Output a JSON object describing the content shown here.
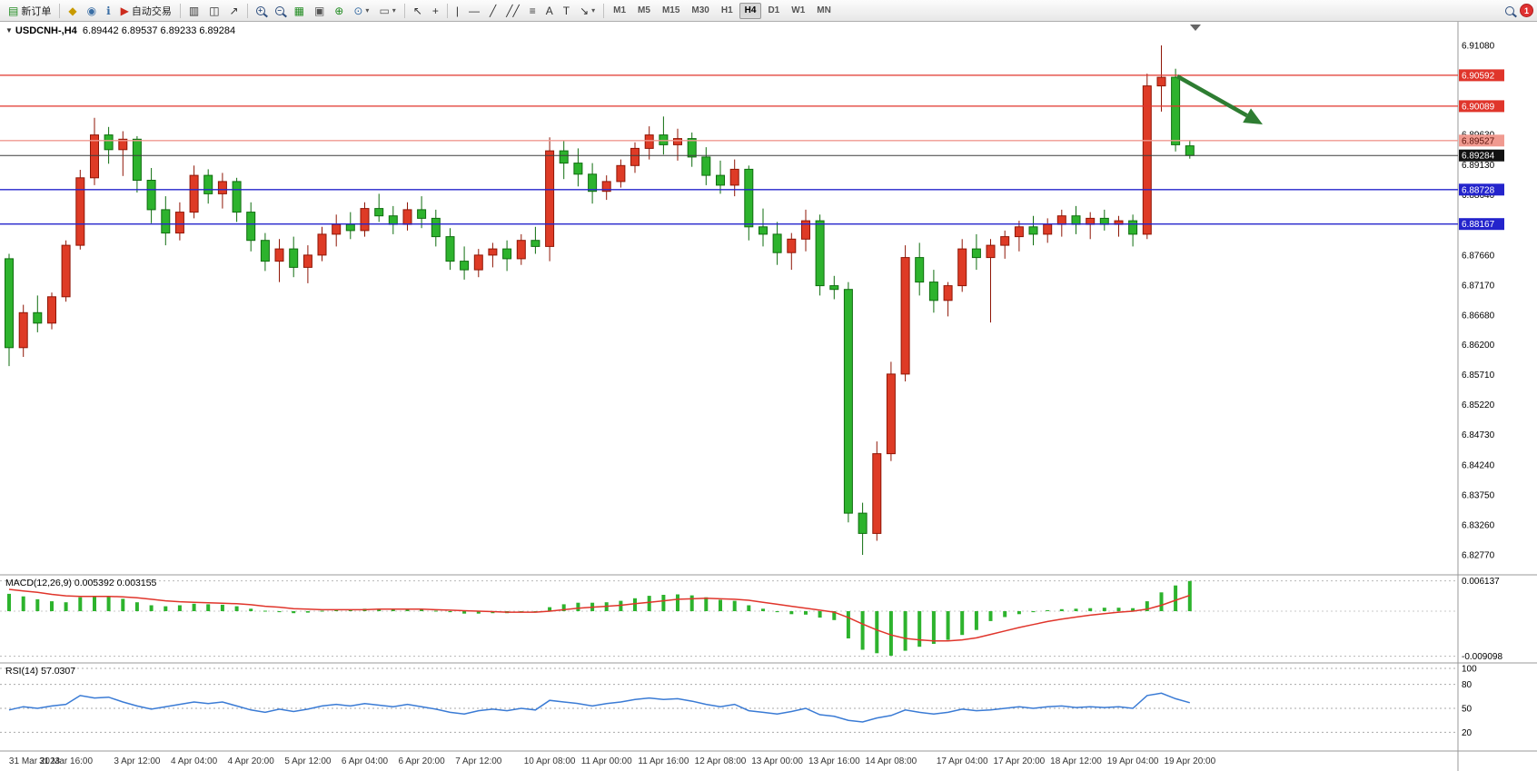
{
  "toolbar": {
    "new_order": "新订单",
    "auto_trading": "自动交易",
    "timeframes": [
      "M1",
      "M5",
      "M15",
      "M30",
      "H1",
      "H4",
      "D1",
      "W1",
      "MN"
    ],
    "active_timeframe": "H4",
    "notification_count": "1"
  },
  "icons": {
    "menu_collapse": "▾",
    "new_order": "▤",
    "market_watch": "◆",
    "profiles": "◉",
    "info": "ℹ",
    "auto_trading": "▶",
    "bar_chart": "▥",
    "candle_chart": "◫",
    "line_chart": "↗",
    "tile_windows": "▦",
    "arrange_windows": "▣",
    "add_indicator": "⊕",
    "periods": "⊙",
    "template": "▭",
    "dropdown": "▾",
    "cursor": "↖",
    "crosshair": "+",
    "vertical_line": "|",
    "horizontal_line": "—",
    "trend_line": "╱",
    "channel": "╱╱",
    "fibonacci": "≡",
    "text": "A",
    "text_label": "T",
    "arrow_tool": "↘",
    "chart_collapse": "▼",
    "shift_marker": "▼"
  },
  "chart": {
    "type": "candlestick",
    "symbol": "USDCNH-,H4",
    "timeframe": "H4",
    "open": "6.89442",
    "high": "6.89537",
    "low": "6.89233",
    "close": "6.89284",
    "colors": {
      "up": "#de3b26",
      "up_dark": "#8f1606",
      "down": "#2db32d",
      "down_dark": "#0f6d0f",
      "current_line": "#3c3c3c",
      "resistance": "#e0352b",
      "support": "#2424cc",
      "mid_line": "#f09a90",
      "arrow": "#2e7d32"
    },
    "price_axis_labels": [
      "6.91080",
      "6.89630",
      "6.89130",
      "6.88640",
      "6.87660",
      "6.87170",
      "6.86680",
      "6.86200",
      "6.85710",
      "6.85220",
      "6.84730",
      "6.84240",
      "6.83750",
      "6.83260",
      "6.82770"
    ],
    "levels": [
      {
        "price": "6.90592",
        "value": 6.90592,
        "kind": "resistance"
      },
      {
        "price": "6.90089",
        "value": 6.90089,
        "kind": "resistance"
      },
      {
        "price": "6.89527",
        "value": 6.89527,
        "kind": "mid_line"
      },
      {
        "price": "6.89284",
        "value": 6.89284,
        "kind": "current_line"
      },
      {
        "price": "6.88728",
        "value": 6.88728,
        "kind": "support"
      },
      {
        "price": "6.88167",
        "value": 6.88167,
        "kind": "support"
      }
    ],
    "annotation": {
      "type": "arrow",
      "direction": "down-right"
    },
    "candles": [
      [
        6.876,
        6.8768,
        6.8585,
        6.8615
      ],
      [
        6.8615,
        6.8685,
        6.86,
        6.8672
      ],
      [
        6.8672,
        6.87,
        6.864,
        6.8655
      ],
      [
        6.8655,
        6.8705,
        6.8645,
        6.8698
      ],
      [
        6.8698,
        6.879,
        6.869,
        6.8782
      ],
      [
        6.8782,
        6.8905,
        6.8775,
        6.8892
      ],
      [
        6.8892,
        6.899,
        6.888,
        6.8962
      ],
      [
        6.8962,
        6.8975,
        6.8915,
        6.8938
      ],
      [
        6.8938,
        6.8968,
        6.8895,
        6.8955
      ],
      [
        6.8955,
        6.896,
        6.8868,
        6.8888
      ],
      [
        6.8888,
        6.8908,
        6.8818,
        6.884
      ],
      [
        6.884,
        6.8862,
        6.8782,
        6.8802
      ],
      [
        6.8802,
        6.8852,
        6.879,
        6.8836
      ],
      [
        6.8836,
        6.8912,
        6.8826,
        6.8896
      ],
      [
        6.8896,
        6.8906,
        6.885,
        6.8866
      ],
      [
        6.8866,
        6.89,
        6.8842,
        6.8886
      ],
      [
        6.8886,
        6.8892,
        6.882,
        6.8836
      ],
      [
        6.8836,
        6.8852,
        6.8772,
        6.879
      ],
      [
        6.879,
        6.8802,
        6.874,
        6.8756
      ],
      [
        6.8756,
        6.8792,
        6.8722,
        6.8776
      ],
      [
        6.8776,
        6.8796,
        6.873,
        6.8746
      ],
      [
        6.8746,
        6.8782,
        6.872,
        6.8766
      ],
      [
        6.8766,
        6.8812,
        6.8756,
        6.88
      ],
      [
        6.88,
        6.8832,
        6.878,
        6.8816
      ],
      [
        6.8816,
        6.8836,
        6.8792,
        6.8806
      ],
      [
        6.8806,
        6.8852,
        6.8796,
        6.8842
      ],
      [
        6.8842,
        6.8866,
        6.882,
        6.883
      ],
      [
        6.883,
        6.8846,
        6.88,
        6.8816
      ],
      [
        6.8816,
        6.8852,
        6.8806,
        6.884
      ],
      [
        6.884,
        6.8862,
        6.881,
        6.8826
      ],
      [
        6.8826,
        6.884,
        6.878,
        6.8796
      ],
      [
        6.8796,
        6.881,
        6.8742,
        6.8756
      ],
      [
        6.8756,
        6.878,
        6.8726,
        6.8742
      ],
      [
        6.8742,
        6.8776,
        6.873,
        6.8766
      ],
      [
        6.8766,
        6.8786,
        6.8746,
        6.8776
      ],
      [
        6.8776,
        6.879,
        6.874,
        6.876
      ],
      [
        6.876,
        6.88,
        6.875,
        6.879
      ],
      [
        6.879,
        6.8812,
        6.8768,
        6.878
      ],
      [
        6.878,
        6.8958,
        6.8756,
        6.8936
      ],
      [
        6.8936,
        6.8952,
        6.889,
        6.8916
      ],
      [
        6.8916,
        6.894,
        6.8878,
        6.8898
      ],
      [
        6.8898,
        6.8916,
        6.885,
        6.887
      ],
      [
        6.887,
        6.8896,
        6.8856,
        6.8886
      ],
      [
        6.8886,
        6.8922,
        6.8876,
        6.8912
      ],
      [
        6.8912,
        6.895,
        6.89,
        6.894
      ],
      [
        6.894,
        6.8976,
        6.8922,
        6.8962
      ],
      [
        6.8962,
        6.8992,
        6.893,
        6.8946
      ],
      [
        6.8946,
        6.8972,
        6.892,
        6.8956
      ],
      [
        6.8956,
        6.8966,
        6.891,
        6.8926
      ],
      [
        6.8926,
        6.8942,
        6.888,
        6.8896
      ],
      [
        6.8896,
        6.892,
        6.8866,
        6.888
      ],
      [
        6.888,
        6.8922,
        6.8862,
        6.8906
      ],
      [
        6.8906,
        6.8912,
        6.879,
        6.8812
      ],
      [
        6.8812,
        6.8842,
        6.878,
        6.88
      ],
      [
        6.88,
        6.882,
        6.875,
        6.877
      ],
      [
        6.877,
        6.8802,
        6.8742,
        6.8792
      ],
      [
        6.8792,
        6.884,
        6.8772,
        6.8822
      ],
      [
        6.8822,
        6.8832,
        6.87,
        6.8716
      ],
      [
        6.8716,
        6.8732,
        6.8694,
        6.871
      ],
      [
        6.871,
        6.8722,
        6.833,
        6.8345
      ],
      [
        6.8345,
        6.8362,
        6.8277,
        6.8312
      ],
      [
        6.8312,
        6.8462,
        6.83,
        6.8442
      ],
      [
        6.8442,
        6.8592,
        6.843,
        6.8572
      ],
      [
        6.8572,
        6.8782,
        6.856,
        6.8762
      ],
      [
        6.8762,
        6.8786,
        6.87,
        6.8722
      ],
      [
        6.8722,
        6.8742,
        6.8672,
        6.8692
      ],
      [
        6.8692,
        6.8722,
        6.8666,
        6.8716
      ],
      [
        6.8716,
        6.8792,
        6.8706,
        6.8776
      ],
      [
        6.8776,
        6.88,
        6.8742,
        6.8762
      ],
      [
        6.8762,
        6.8792,
        6.8656,
        6.8782
      ],
      [
        6.8782,
        6.8806,
        6.876,
        6.8796
      ],
      [
        6.8796,
        6.8822,
        6.8772,
        6.8812
      ],
      [
        6.8812,
        6.883,
        6.8782,
        6.88
      ],
      [
        6.88,
        6.8826,
        6.8786,
        6.8816
      ],
      [
        6.8816,
        6.884,
        6.8796,
        6.883
      ],
      [
        6.883,
        6.8846,
        6.88,
        6.8816
      ],
      [
        6.8816,
        6.8836,
        6.8792,
        6.8826
      ],
      [
        6.8826,
        6.884,
        6.8806,
        6.8816
      ],
      [
        6.8816,
        6.883,
        6.8796,
        6.8822
      ],
      [
        6.8822,
        6.8832,
        6.878,
        6.88
      ],
      [
        6.88,
        6.9062,
        6.8792,
        6.9042
      ],
      [
        6.9042,
        6.9108,
        6.9,
        6.9056
      ],
      [
        6.9056,
        6.907,
        6.8935,
        6.8946
      ],
      [
        6.89442,
        6.89537,
        6.89233,
        6.89284
      ]
    ]
  },
  "macd": {
    "name": "MACD(12,26,9)",
    "main_value": "0.005392",
    "signal_value": "0.003155",
    "axis_max": "0.006137",
    "axis_min": "-0.009098",
    "histogram": [
      0.0035,
      0.003,
      0.0024,
      0.002,
      0.0018,
      0.0028,
      0.003,
      0.0029,
      0.0025,
      0.0018,
      0.0012,
      0.001,
      0.0012,
      0.0015,
      0.0014,
      0.0013,
      0.001,
      0.0005,
      0.0001,
      -0.0002,
      -0.0004,
      -0.0003,
      0.0001,
      0.0002,
      0.0003,
      0.0005,
      0.0005,
      0.0004,
      0.0004,
      0.0003,
      0.0001,
      -0.0002,
      -0.0005,
      -0.0005,
      -0.0004,
      -0.0004,
      -0.0002,
      -0.0002,
      0.0008,
      0.0014,
      0.0017,
      0.0017,
      0.0018,
      0.0021,
      0.0026,
      0.0031,
      0.0033,
      0.0034,
      0.0032,
      0.0028,
      0.0023,
      0.0021,
      0.0012,
      0.0005,
      -0.0002,
      -0.0006,
      -0.0007,
      -0.0013,
      -0.0018,
      -0.0055,
      -0.0078,
      -0.0085,
      -0.009,
      -0.008,
      -0.0072,
      -0.0066,
      -0.0058,
      -0.0048,
      -0.0038,
      -0.002,
      -0.0012,
      -0.0006,
      -0.0002,
      0.0002,
      0.0004,
      0.0005,
      0.0006,
      0.0007,
      0.0007,
      0.0006,
      0.002,
      0.0038,
      0.0052,
      0.0061
    ],
    "signal": [
      0.0044,
      0.0041,
      0.0038,
      0.0034,
      0.0031,
      0.003,
      0.003,
      0.003,
      0.0029,
      0.0027,
      0.0024,
      0.0021,
      0.0019,
      0.0018,
      0.0017,
      0.0016,
      0.0015,
      0.0013,
      0.001,
      0.0008,
      0.0005,
      0.0004,
      0.0003,
      0.0003,
      0.0003,
      0.0003,
      0.0004,
      0.0004,
      0.0004,
      0.0004,
      0.0003,
      0.0002,
      0.0001,
      0.0,
      -0.0001,
      -0.0002,
      -0.0002,
      -0.0002,
      0.0,
      0.0003,
      0.0006,
      0.0008,
      0.001,
      0.0012,
      0.0015,
      0.0018,
      0.0021,
      0.0024,
      0.0025,
      0.0026,
      0.0025,
      0.0024,
      0.0022,
      0.0018,
      0.0014,
      0.001,
      0.0006,
      0.0002,
      -0.0002,
      -0.0013,
      -0.0026,
      -0.0038,
      -0.0048,
      -0.0055,
      -0.0058,
      -0.006,
      -0.006,
      -0.0058,
      -0.0054,
      -0.0047,
      -0.004,
      -0.0033,
      -0.0027,
      -0.0021,
      -0.0016,
      -0.0012,
      -0.0008,
      -0.0005,
      -0.0002,
      0.0,
      0.0004,
      0.0012,
      0.0022,
      0.0032
    ]
  },
  "rsi": {
    "name": "RSI(14)",
    "value": "57.0307",
    "axis_labels": [
      "100",
      "80",
      "50",
      "20"
    ],
    "levels": [
      100,
      80,
      50,
      20
    ],
    "series": [
      48,
      52,
      50,
      53,
      55,
      66,
      63,
      64,
      58,
      53,
      49,
      52,
      55,
      58,
      56,
      58,
      53,
      48,
      45,
      49,
      46,
      49,
      53,
      55,
      53,
      56,
      54,
      52,
      55,
      52,
      49,
      45,
      43,
      47,
      49,
      47,
      50,
      48,
      60,
      58,
      56,
      53,
      56,
      58,
      61,
      63,
      61,
      62,
      59,
      55,
      52,
      55,
      47,
      45,
      43,
      46,
      50,
      42,
      40,
      35,
      33,
      38,
      41,
      48,
      45,
      43,
      45,
      49,
      47,
      48,
      50,
      52,
      50,
      52,
      53,
      51,
      52,
      51,
      52,
      50,
      66,
      69,
      62,
      57.03
    ]
  },
  "time_axis": [
    {
      "text": "31 Mar 2023",
      "index": 0
    },
    {
      "text": "31 Mar 16:00",
      "index": 4
    },
    {
      "text": "3 Apr 12:00",
      "index": 9
    },
    {
      "text": "4 Apr 04:00",
      "index": 13
    },
    {
      "text": "4 Apr 20:00",
      "index": 17
    },
    {
      "text": "5 Apr 12:00",
      "index": 21
    },
    {
      "text": "6 Apr 04:00",
      "index": 25
    },
    {
      "text": "6 Apr 20:00",
      "index": 29
    },
    {
      "text": "7 Apr 12:00",
      "index": 33
    },
    {
      "text": "10 Apr 08:00",
      "index": 38
    },
    {
      "text": "11 Apr 00:00",
      "index": 42
    },
    {
      "text": "11 Apr 16:00",
      "index": 46
    },
    {
      "text": "12 Apr 08:00",
      "index": 50
    },
    {
      "text": "13 Apr 00:00",
      "index": 54
    },
    {
      "text": "13 Apr 16:00",
      "index": 58
    },
    {
      "text": "14 Apr 08:00",
      "index": 62
    },
    {
      "text": "17 Apr 04:00",
      "index": 67
    },
    {
      "text": "17 Apr 20:00",
      "index": 71
    },
    {
      "text": "18 Apr 12:00",
      "index": 75
    },
    {
      "text": "19 Apr 04:00",
      "index": 79
    },
    {
      "text": "19 Apr 20:00",
      "index": 83
    }
  ]
}
